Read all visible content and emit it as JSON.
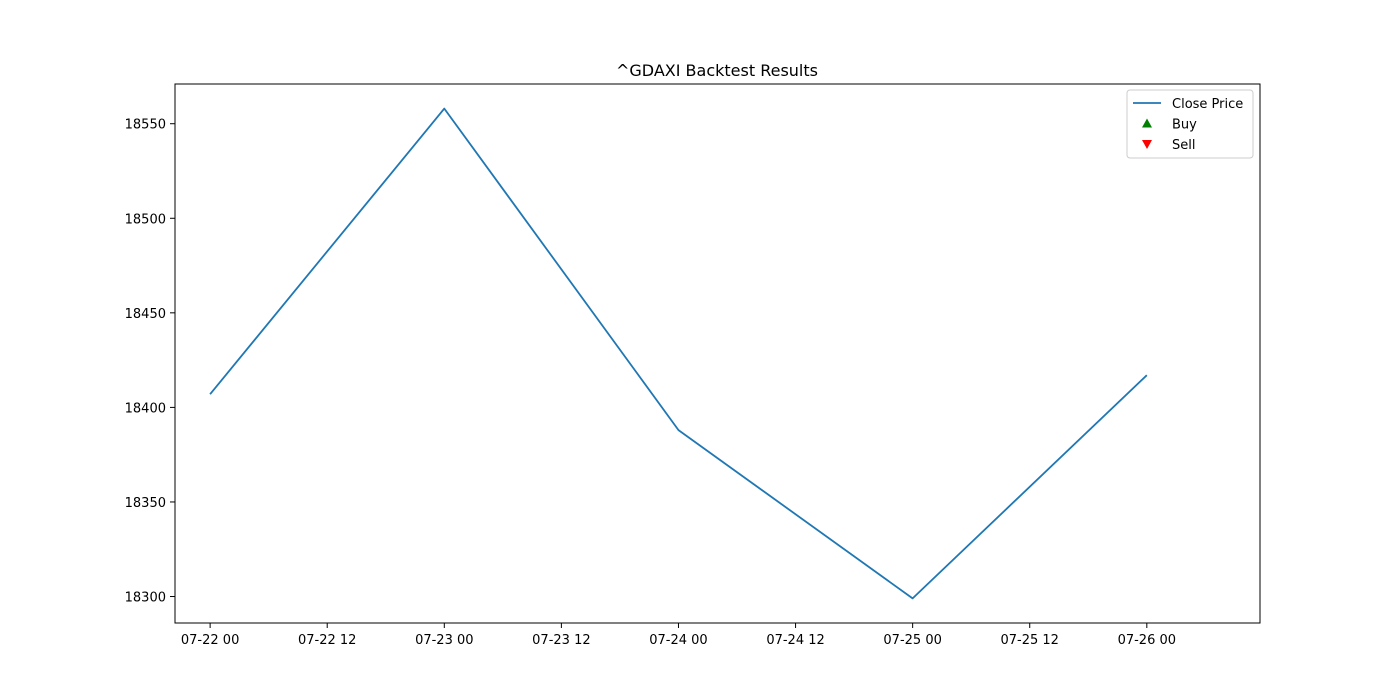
{
  "chart_data": {
    "type": "line",
    "title": "^GDAXI Backtest Results",
    "xlabel": "",
    "ylabel": "",
    "x": [
      "2024-07-22",
      "2024-07-23",
      "2024-07-24",
      "2024-07-25",
      "2024-07-26"
    ],
    "x_ticks": [
      "07-22 00",
      "07-22 12",
      "07-23 00",
      "07-23 12",
      "07-24 00",
      "07-24 12",
      "07-25 00",
      "07-25 12",
      "07-26 00"
    ],
    "y_ticks": [
      18300,
      18350,
      18400,
      18450,
      18500,
      18550
    ],
    "xlim": [
      "2024-07-21T20:24",
      "2024-07-26T11:36"
    ],
    "ylim": [
      18286,
      18571
    ],
    "grid": false,
    "legend_position": "top-right",
    "series": [
      {
        "name": "Close Price",
        "type": "line",
        "color": "#1f77b4",
        "values": [
          18407,
          18558,
          18388,
          18299,
          18417
        ]
      },
      {
        "name": "Buy",
        "type": "scatter",
        "marker": "triangle-up",
        "color": "#008000",
        "values": []
      },
      {
        "name": "Sell",
        "type": "scatter",
        "marker": "triangle-down",
        "color": "#ff0000",
        "values": []
      }
    ]
  }
}
